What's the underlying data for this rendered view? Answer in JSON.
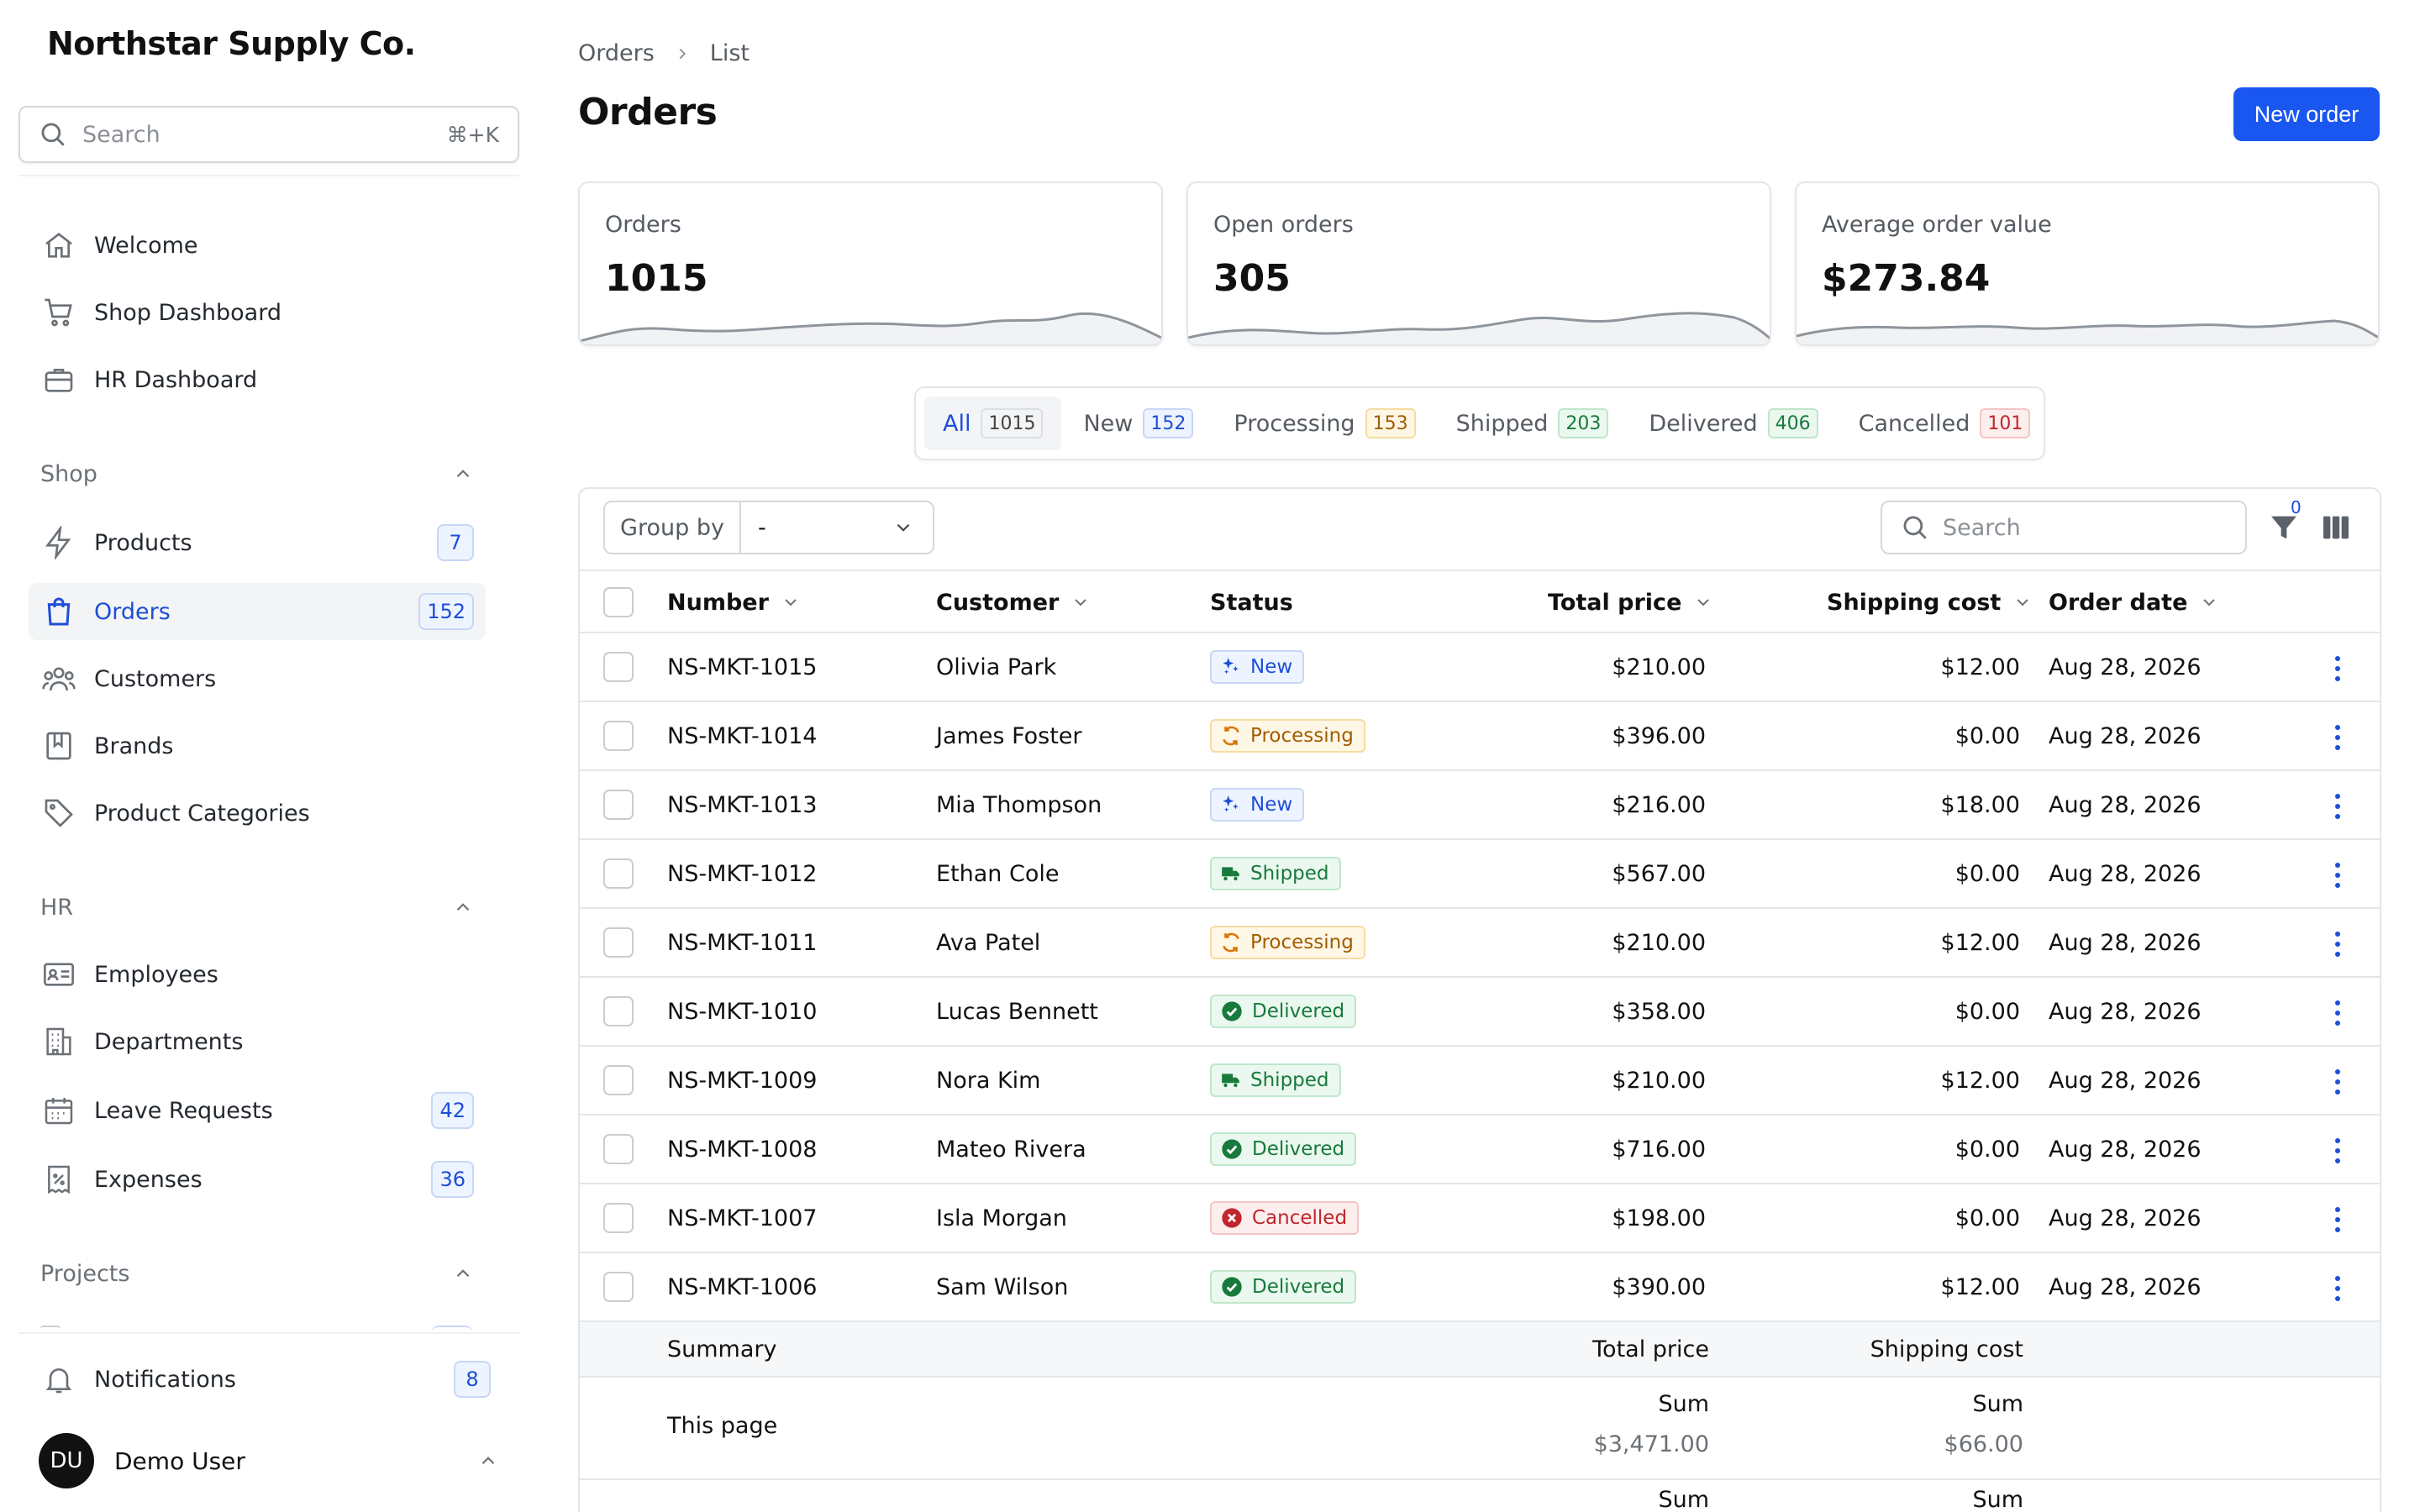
{
  "app": {
    "brand": "Northstar Supply Co."
  },
  "sidebar": {
    "search": {
      "placeholder": "Search",
      "shortcut": "⌘+K"
    },
    "top_items": [
      {
        "label": "Welcome",
        "icon": "home-icon"
      },
      {
        "label": "Shop Dashboard",
        "icon": "cart-icon"
      },
      {
        "label": "HR Dashboard",
        "icon": "briefcase-icon"
      }
    ],
    "shop": {
      "title": "Shop",
      "items": [
        {
          "label": "Products",
          "icon": "bolt-icon",
          "badge": "7"
        },
        {
          "label": "Orders",
          "icon": "shopping-bag-icon",
          "badge": "152",
          "active": true
        },
        {
          "label": "Customers",
          "icon": "users-icon"
        },
        {
          "label": "Brands",
          "icon": "bookmark-icon"
        },
        {
          "label": "Product Categories",
          "icon": "tag-icon"
        }
      ]
    },
    "hr": {
      "title": "HR",
      "items": [
        {
          "label": "Employees",
          "icon": "id-card-icon"
        },
        {
          "label": "Departments",
          "icon": "building-icon"
        },
        {
          "label": "Leave Requests",
          "icon": "calendar-icon",
          "badge": "42"
        },
        {
          "label": "Expenses",
          "icon": "receipt-icon",
          "badge": "36"
        }
      ]
    },
    "projects": {
      "title": "Projects"
    },
    "notifications": {
      "label": "Notifications",
      "badge": "8",
      "icon": "bell-icon"
    },
    "user": {
      "initials": "DU",
      "name": "Demo User"
    }
  },
  "header": {
    "breadcrumbs": [
      "Orders",
      "List"
    ],
    "title": "Orders",
    "new_button": "New order"
  },
  "stats": [
    {
      "label": "Orders",
      "value": "1015"
    },
    {
      "label": "Open orders",
      "value": "305"
    },
    {
      "label": "Average order value",
      "value": "$273.84"
    }
  ],
  "tabs": [
    {
      "label": "All",
      "count": "1015",
      "tone": "gray",
      "active": true
    },
    {
      "label": "New",
      "count": "152",
      "tone": "blue"
    },
    {
      "label": "Processing",
      "count": "153",
      "tone": "amber"
    },
    {
      "label": "Shipped",
      "count": "203",
      "tone": "green"
    },
    {
      "label": "Delivered",
      "count": "406",
      "tone": "green"
    },
    {
      "label": "Cancelled",
      "count": "101",
      "tone": "red"
    }
  ],
  "toolbar": {
    "group_by_label": "Group by",
    "group_by_value": "-",
    "search_placeholder": "Search",
    "filter_count": "0"
  },
  "table": {
    "columns": [
      "Number",
      "Customer",
      "Status",
      "Total price",
      "Shipping cost",
      "Order date"
    ],
    "rows": [
      {
        "number": "NS-MKT-1015",
        "customer": "Olivia Park",
        "status": "New",
        "total": "$210.00",
        "shipping": "$12.00",
        "date": "Aug 28, 2026"
      },
      {
        "number": "NS-MKT-1014",
        "customer": "James Foster",
        "status": "Processing",
        "total": "$396.00",
        "shipping": "$0.00",
        "date": "Aug 28, 2026"
      },
      {
        "number": "NS-MKT-1013",
        "customer": "Mia Thompson",
        "status": "New",
        "total": "$216.00",
        "shipping": "$18.00",
        "date": "Aug 28, 2026"
      },
      {
        "number": "NS-MKT-1012",
        "customer": "Ethan Cole",
        "status": "Shipped",
        "total": "$567.00",
        "shipping": "$0.00",
        "date": "Aug 28, 2026"
      },
      {
        "number": "NS-MKT-1011",
        "customer": "Ava Patel",
        "status": "Processing",
        "total": "$210.00",
        "shipping": "$12.00",
        "date": "Aug 28, 2026"
      },
      {
        "number": "NS-MKT-1010",
        "customer": "Lucas Bennett",
        "status": "Delivered",
        "total": "$358.00",
        "shipping": "$0.00",
        "date": "Aug 28, 2026"
      },
      {
        "number": "NS-MKT-1009",
        "customer": "Nora Kim",
        "status": "Shipped",
        "total": "$210.00",
        "shipping": "$12.00",
        "date": "Aug 28, 2026"
      },
      {
        "number": "NS-MKT-1008",
        "customer": "Mateo Rivera",
        "status": "Delivered",
        "total": "$716.00",
        "shipping": "$0.00",
        "date": "Aug 28, 2026"
      },
      {
        "number": "NS-MKT-1007",
        "customer": "Isla Morgan",
        "status": "Cancelled",
        "total": "$198.00",
        "shipping": "$0.00",
        "date": "Aug 28, 2026"
      },
      {
        "number": "NS-MKT-1006",
        "customer": "Sam Wilson",
        "status": "Delivered",
        "total": "$390.00",
        "shipping": "$12.00",
        "date": "Aug 28, 2026"
      }
    ]
  },
  "summary": {
    "title": "Summary",
    "total_label": "Total price",
    "shipping_label": "Shipping cost",
    "this_page": "This page",
    "sum_label": "Sum",
    "total_sum": "$3,471.00",
    "shipping_sum": "$66.00"
  }
}
